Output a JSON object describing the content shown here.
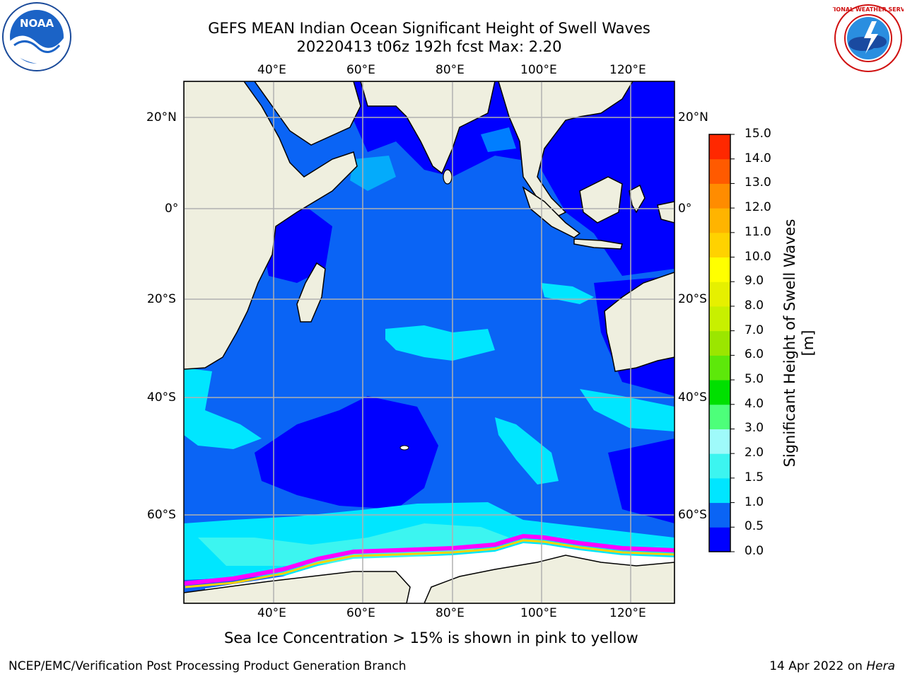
{
  "title_line1": "GEFS MEAN Indian Ocean Significant Height of Swell Waves",
  "title_line2": "20220413 t06z 192h fcst   Max: 2.20",
  "lon_labels": [
    "40°E",
    "60°E",
    "80°E",
    "100°E",
    "120°E"
  ],
  "lat_labels": [
    "20°N",
    "0°",
    "20°S",
    "40°S",
    "60°S"
  ],
  "colorbar": {
    "title": "Significant Height of Swell Waves [m]",
    "ticks": [
      "0.0",
      "0.5",
      "1.0",
      "1.5",
      "2.0",
      "3.0",
      "4.0",
      "5.0",
      "6.0",
      "7.0",
      "8.0",
      "9.0",
      "10.0",
      "11.0",
      "12.0",
      "13.0",
      "14.0",
      "15.0"
    ],
    "colors": [
      "#0000ff",
      "#0a64f5",
      "#00e6ff",
      "#3cf5f0",
      "#9ffafa",
      "#4dff7a",
      "#00e000",
      "#5de80a",
      "#9be600",
      "#c8f000",
      "#e6f000",
      "#ffff00",
      "#ffd200",
      "#ffb400",
      "#ff8c00",
      "#ff5a00",
      "#ff2800"
    ]
  },
  "note": "Sea Ice Concentration > 15% is shown in pink to yellow",
  "footer_left": "NCEP/EMC/Verification Post Processing Product Generation Branch",
  "footer_right_date": "14 Apr 2022 on ",
  "footer_right_host": "Hera",
  "logos": {
    "noaa_text": "NOAA",
    "nws_text": "NATIONAL WEATHER SERVICE"
  }
}
